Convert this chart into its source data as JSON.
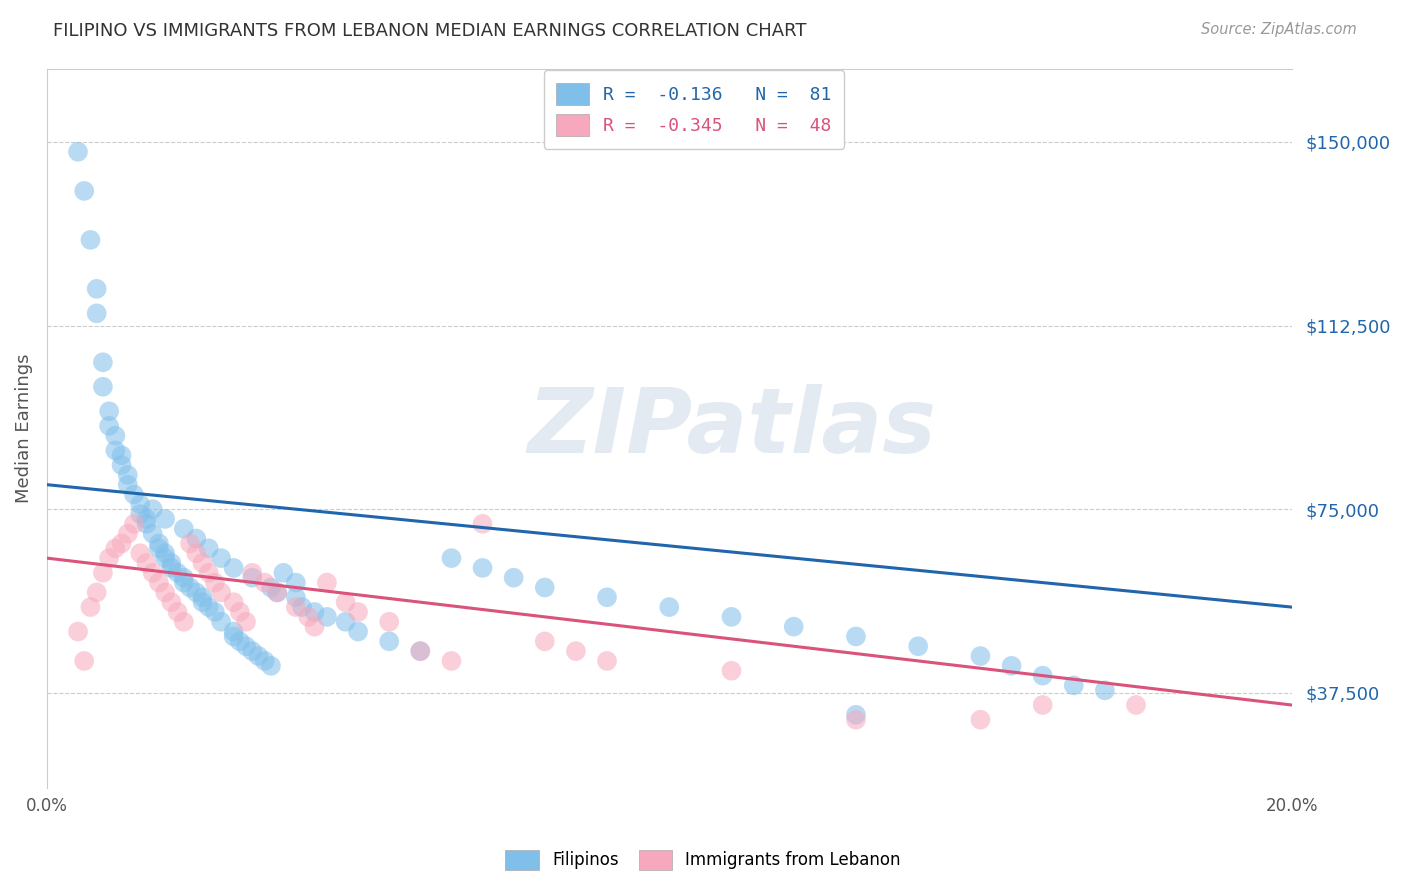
{
  "title": "FILIPINO VS IMMIGRANTS FROM LEBANON MEDIAN EARNINGS CORRELATION CHART",
  "source": "Source: ZipAtlas.com",
  "ylabel": "Median Earnings",
  "xlim": [
    0.0,
    0.2
  ],
  "ylim": [
    18000,
    165000
  ],
  "yticks": [
    37500,
    75000,
    112500,
    150000
  ],
  "ytick_labels": [
    "$37,500",
    "$75,000",
    "$112,500",
    "$150,000"
  ],
  "xticks": [
    0.0,
    0.05,
    0.1,
    0.15,
    0.2
  ],
  "xtick_labels": [
    "0.0%",
    "",
    "",
    "",
    "20.0%"
  ],
  "watermark": "ZIPatlas",
  "blue_color": "#7fbfea",
  "pink_color": "#f7a8bc",
  "blue_line_color": "#2166ac",
  "pink_line_color": "#d9537a",
  "filipinos_label": "Filipinos",
  "lebanon_label": "Immigrants from Lebanon",
  "legend1_r": "-0.136",
  "legend1_n": "81",
  "legend2_r": "-0.345",
  "legend2_n": "48",
  "blue_line_x": [
    0.0,
    0.2
  ],
  "blue_line_y": [
    80000,
    55000
  ],
  "pink_line_x": [
    0.0,
    0.2
  ],
  "pink_line_y": [
    65000,
    35000
  ],
  "blue_scatter_x": [
    0.005,
    0.006,
    0.007,
    0.008,
    0.008,
    0.009,
    0.009,
    0.01,
    0.01,
    0.011,
    0.011,
    0.012,
    0.012,
    0.013,
    0.013,
    0.014,
    0.015,
    0.015,
    0.016,
    0.016,
    0.017,
    0.018,
    0.018,
    0.019,
    0.019,
    0.02,
    0.02,
    0.021,
    0.022,
    0.022,
    0.023,
    0.024,
    0.025,
    0.025,
    0.026,
    0.027,
    0.028,
    0.03,
    0.03,
    0.031,
    0.032,
    0.033,
    0.034,
    0.035,
    0.036,
    0.037,
    0.038,
    0.04,
    0.041,
    0.043,
    0.045,
    0.048,
    0.05,
    0.055,
    0.06,
    0.065,
    0.07,
    0.075,
    0.08,
    0.09,
    0.1,
    0.11,
    0.12,
    0.13,
    0.14,
    0.15,
    0.155,
    0.16,
    0.165,
    0.17,
    0.017,
    0.019,
    0.022,
    0.024,
    0.026,
    0.028,
    0.03,
    0.033,
    0.036,
    0.04,
    0.13
  ],
  "blue_scatter_y": [
    148000,
    140000,
    130000,
    120000,
    115000,
    105000,
    100000,
    95000,
    92000,
    90000,
    87000,
    86000,
    84000,
    82000,
    80000,
    78000,
    76000,
    74000,
    73000,
    72000,
    70000,
    68000,
    67000,
    66000,
    65000,
    64000,
    63000,
    62000,
    61000,
    60000,
    59000,
    58000,
    57000,
    56000,
    55000,
    54000,
    52000,
    50000,
    49000,
    48000,
    47000,
    46000,
    45000,
    44000,
    43000,
    58000,
    62000,
    60000,
    55000,
    54000,
    53000,
    52000,
    50000,
    48000,
    46000,
    65000,
    63000,
    61000,
    59000,
    57000,
    55000,
    53000,
    51000,
    49000,
    47000,
    45000,
    43000,
    41000,
    39000,
    38000,
    75000,
    73000,
    71000,
    69000,
    67000,
    65000,
    63000,
    61000,
    59000,
    57000,
    33000
  ],
  "pink_scatter_x": [
    0.005,
    0.006,
    0.007,
    0.008,
    0.009,
    0.01,
    0.011,
    0.012,
    0.013,
    0.014,
    0.015,
    0.016,
    0.017,
    0.018,
    0.019,
    0.02,
    0.021,
    0.022,
    0.023,
    0.024,
    0.025,
    0.026,
    0.027,
    0.028,
    0.03,
    0.031,
    0.032,
    0.033,
    0.035,
    0.037,
    0.04,
    0.042,
    0.043,
    0.045,
    0.048,
    0.05,
    0.055,
    0.06,
    0.065,
    0.07,
    0.08,
    0.085,
    0.09,
    0.11,
    0.13,
    0.15,
    0.16,
    0.175
  ],
  "pink_scatter_y": [
    50000,
    44000,
    55000,
    58000,
    62000,
    65000,
    67000,
    68000,
    70000,
    72000,
    66000,
    64000,
    62000,
    60000,
    58000,
    56000,
    54000,
    52000,
    68000,
    66000,
    64000,
    62000,
    60000,
    58000,
    56000,
    54000,
    52000,
    62000,
    60000,
    58000,
    55000,
    53000,
    51000,
    60000,
    56000,
    54000,
    52000,
    46000,
    44000,
    72000,
    48000,
    46000,
    44000,
    42000,
    32000,
    32000,
    35000,
    35000
  ]
}
